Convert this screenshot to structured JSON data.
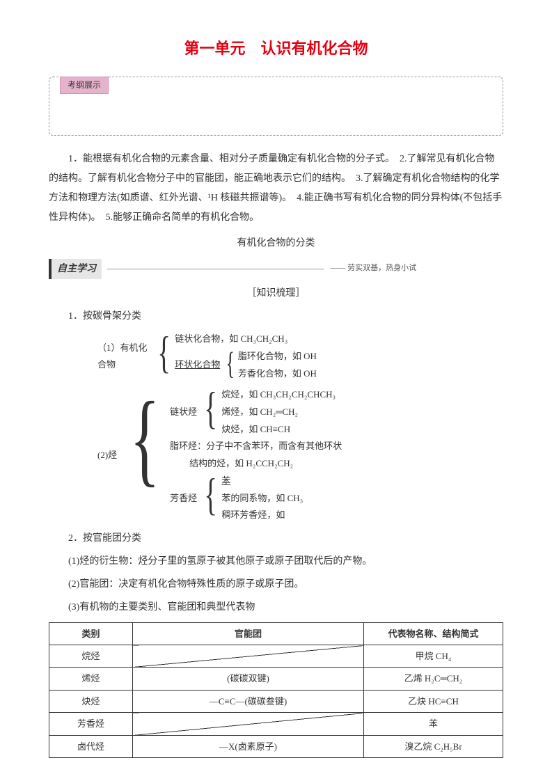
{
  "title": "第一单元　认识有机化合物",
  "outline_tag": "考纲展示",
  "intro_para": "1．能根据有机化合物的元素含量、相对分子质量确定有机化合物的分子式。　2.了解常见有机化合物的结构。了解有机化合物分子中的官能团，能正确地表示它们的结构。　3.了解确定有机化合物结构的化学方法和物理方法(如质谱、红外光谱、¹H 核磁共振谱等)。　4.能正确书写有机化合物的同分异构体(不包括手性异构体)。　5.能够正确命名简单的有机化合物。",
  "subtitle_center": "有机化合物的分类",
  "study_label": "自主学习",
  "study_note": "—— 劳实双基，热身小试",
  "knowledge_label": "［知识梳理］",
  "section1": "1．按碳骨架分类",
  "tree1": {
    "prefix": "（1）有机化合物",
    "chain": "链状化合物，如 CH₃CH₂CH₃",
    "ring_label": "环状化合物",
    "ring_a": "脂环化合物，如 OH",
    "ring_b": "芳香化合物，如 OH"
  },
  "tree2": {
    "prefix": "(2)烃",
    "chain_label": "链状烃",
    "chain_a": "烷烃，如 CH₃CH₂CH₂CHCH₃",
    "chain_b": "烯烃，如 CH₂═CH₂",
    "chain_c": "炔烃，如 CH≡CH",
    "ali_label": "脂环烃：分子中不含苯环，而含有其他环状",
    "ali_sub": "结构的烃，如 H₂CCH₂CH₂",
    "aroma_label": "芳香烃",
    "aroma_a": "苯",
    "aroma_b": "苯的同系物，如 CH₃",
    "aroma_c": "稠环芳香烃，如"
  },
  "section2": "2．按官能团分类",
  "sub1": "(1)烃的衍生物：烃分子里的氢原子被其他原子或原子团取代后的产物。",
  "sub2": "(2)官能团：决定有机化合物特殊性质的原子或原子团。",
  "sub3": "(3)有机物的主要类别、官能团和典型代表物",
  "table": {
    "headers": [
      "类别",
      "官能团",
      "代表物名称、结构简式"
    ],
    "rows": [
      {
        "cat": "烷烃",
        "grp_diag": true,
        "rep": "甲烷 CH₄"
      },
      {
        "cat": "烯烃",
        "grp": "(碳碳双键)",
        "rep": "乙烯 H₂C═CH₂"
      },
      {
        "cat": "炔烃",
        "grp": "—C≡C—(碳碳叁键)",
        "rep": "乙炔 HC≡CH"
      },
      {
        "cat": "芳香烃",
        "grp_diag": true,
        "rep": "苯"
      },
      {
        "cat": "卤代烃",
        "grp": "—X(卤素原子)",
        "rep": "溴乙烷 C₂H₅Br"
      }
    ]
  }
}
